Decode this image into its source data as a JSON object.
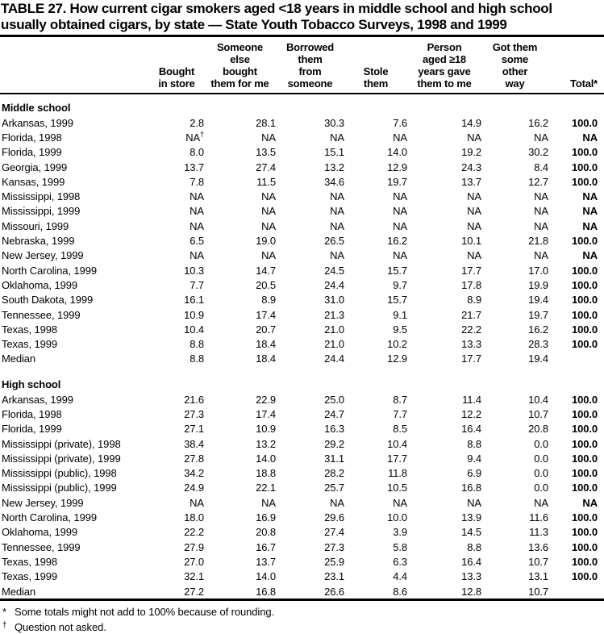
{
  "title": "TABLE 27. How current cigar smokers aged <18 years in middle school and high school\nusually obtained cigars, by state — State Youth Tobacco Surveys, 1998 and 1999",
  "table": {
    "col_headers": [
      "",
      "Bought\nin store",
      "Someone\nelse\nbought\nthem for me",
      "Borrowed\nthem\nfrom\nsomeone",
      "Stole\nthem",
      "Person\naged ≥18\nyears gave\nthem to me",
      "Got them\nsome\nother\nway",
      "Total*"
    ],
    "sections": [
      {
        "heading": "Middle school",
        "rows": [
          {
            "state": "Arkansas, 1999",
            "values": [
              "2.8",
              "28.1",
              "30.3",
              "7.6",
              "14.9",
              "16.2",
              "100.0"
            ]
          },
          {
            "state": "Florida, 1998",
            "values": [
              "NA†",
              "NA",
              "NA",
              "NA",
              "NA",
              "NA",
              "NA"
            ]
          },
          {
            "state": "Florida, 1999",
            "values": [
              "8.0",
              "13.5",
              "15.1",
              "14.0",
              "19.2",
              "30.2",
              "100.0"
            ]
          },
          {
            "state": "Georgia, 1999",
            "values": [
              "13.7",
              "27.4",
              "13.2",
              "12.9",
              "24.3",
              "8.4",
              "100.0"
            ]
          },
          {
            "state": "Kansas, 1999",
            "values": [
              "7.8",
              "11.5",
              "34.6",
              "19.7",
              "13.7",
              "12.7",
              "100.0"
            ]
          },
          {
            "state": "Mississippi, 1998",
            "values": [
              "NA",
              "NA",
              "NA",
              "NA",
              "NA",
              "NA",
              "NA"
            ]
          },
          {
            "state": "Mississippi, 1999",
            "values": [
              "NA",
              "NA",
              "NA",
              "NA",
              "NA",
              "NA",
              "NA"
            ]
          },
          {
            "state": "Missouri, 1999",
            "values": [
              "NA",
              "NA",
              "NA",
              "NA",
              "NA",
              "NA",
              "NA"
            ]
          },
          {
            "state": "Nebraska, 1999",
            "values": [
              "6.5",
              "19.0",
              "26.5",
              "16.2",
              "10.1",
              "21.8",
              "100.0"
            ]
          },
          {
            "state": "New Jersey, 1999",
            "values": [
              "NA",
              "NA",
              "NA",
              "NA",
              "NA",
              "NA",
              "NA"
            ]
          },
          {
            "state": "North Carolina, 1999",
            "values": [
              "10.3",
              "14.7",
              "24.5",
              "15.7",
              "17.7",
              "17.0",
              "100.0"
            ]
          },
          {
            "state": "Oklahoma, 1999",
            "values": [
              "7.7",
              "20.5",
              "24.4",
              "9.7",
              "17.8",
              "19.9",
              "100.0"
            ]
          },
          {
            "state": "South Dakota, 1999",
            "values": [
              "16.1",
              "8.9",
              "31.0",
              "15.7",
              "8.9",
              "19.4",
              "100.0"
            ]
          },
          {
            "state": "Tennessee, 1999",
            "values": [
              "10.9",
              "17.4",
              "21.3",
              "9.1",
              "21.7",
              "19.7",
              "100.0"
            ]
          },
          {
            "state": "Texas, 1998",
            "values": [
              "10.4",
              "20.7",
              "21.0",
              "9.5",
              "22.2",
              "16.2",
              "100.0"
            ]
          },
          {
            "state": "Texas, 1999",
            "values": [
              "8.8",
              "18.4",
              "21.0",
              "10.2",
              "13.3",
              "28.3",
              "100.0"
            ]
          },
          {
            "state": "Median",
            "values": [
              "8.8",
              "18.4",
              "24.4",
              "12.9",
              "17.7",
              "19.4",
              ""
            ]
          }
        ]
      },
      {
        "heading": "High school",
        "rows": [
          {
            "state": "Arkansas, 1999",
            "values": [
              "21.6",
              "22.9",
              "25.0",
              "8.7",
              "11.4",
              "10.4",
              "100.0"
            ]
          },
          {
            "state": "Florida, 1998",
            "values": [
              "27.3",
              "17.4",
              "24.7",
              "7.7",
              "12.2",
              "10.7",
              "100.0"
            ]
          },
          {
            "state": "Florida, 1999",
            "values": [
              "27.1",
              "10.9",
              "16.3",
              "8.5",
              "16.4",
              "20.8",
              "100.0"
            ]
          },
          {
            "state": "Mississippi (private), 1998",
            "values": [
              "38.4",
              "13.2",
              "29.2",
              "10.4",
              "8.8",
              "0.0",
              "100.0"
            ]
          },
          {
            "state": "Mississippi (private), 1999",
            "values": [
              "27.8",
              "14.0",
              "31.1",
              "17.7",
              "9.4",
              "0.0",
              "100.0"
            ]
          },
          {
            "state": "Mississippi (public), 1998",
            "values": [
              "34.2",
              "18.8",
              "28.2",
              "11.8",
              "6.9",
              "0.0",
              "100.0"
            ]
          },
          {
            "state": "Mississippi (public), 1999",
            "values": [
              "24.9",
              "22.1",
              "25.7",
              "10.5",
              "16.8",
              "0.0",
              "100.0"
            ]
          },
          {
            "state": "New Jersey, 1999",
            "values": [
              "NA",
              "NA",
              "NA",
              "NA",
              "NA",
              "NA",
              "NA"
            ]
          },
          {
            "state": "North Carolina, 1999",
            "values": [
              "18.0",
              "16.9",
              "29.6",
              "10.0",
              "13.9",
              "11.6",
              "100.0"
            ]
          },
          {
            "state": "Oklahoma, 1999",
            "values": [
              "22.2",
              "20.8",
              "27.4",
              "3.9",
              "14.5",
              "11.3",
              "100.0"
            ]
          },
          {
            "state": "Tennessee, 1999",
            "values": [
              "27.9",
              "16.7",
              "27.3",
              "5.8",
              "8.8",
              "13.6",
              "100.0"
            ]
          },
          {
            "state": "Texas, 1998",
            "values": [
              "27.0",
              "13.7",
              "25.9",
              "6.3",
              "16.4",
              "10.7",
              "100.0"
            ]
          },
          {
            "state": "Texas, 1999",
            "values": [
              "32.1",
              "14.0",
              "23.1",
              "4.4",
              "13.3",
              "13.1",
              "100.0"
            ]
          },
          {
            "state": "Median",
            "values": [
              "27.2",
              "16.8",
              "26.6",
              "8.6",
              "12.8",
              "10.7",
              ""
            ]
          }
        ]
      }
    ]
  },
  "footnotes": [
    {
      "marker": "*",
      "text": "Some totals might not add to 100% because of rounding."
    },
    {
      "marker": "†",
      "text": "Question not asked."
    }
  ]
}
